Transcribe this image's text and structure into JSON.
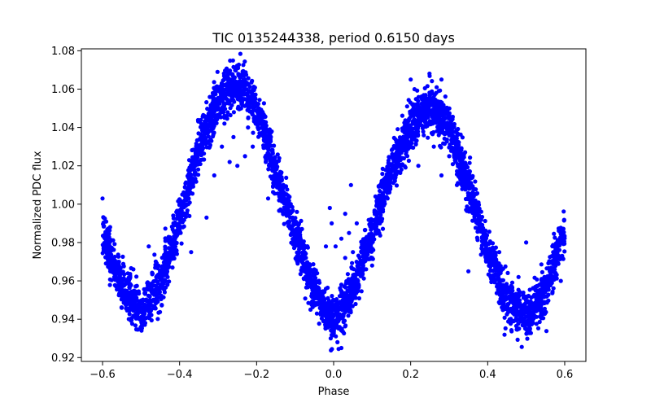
{
  "chart_data": {
    "type": "scatter",
    "title": "TIC 0135244338, period 0.6150 days",
    "xlabel": "Phase",
    "ylabel": "Normalized PDC flux",
    "xlim": [
      -0.655,
      0.655
    ],
    "ylim": [
      0.918,
      1.081
    ],
    "grid": false,
    "legend": "none",
    "marker_color": "#0000ff",
    "x_ticks": [
      -0.6,
      -0.4,
      -0.2,
      0.0,
      0.2,
      0.4,
      0.6
    ],
    "x_tick_labels": [
      "−0.6",
      "−0.4",
      "−0.2",
      "0.0",
      "0.2",
      "0.4",
      "0.6"
    ],
    "y_ticks": [
      0.92,
      0.94,
      0.96,
      0.98,
      1.0,
      1.02,
      1.04,
      1.06,
      1.08
    ],
    "y_tick_labels": [
      "0.92",
      "0.94",
      "0.96",
      "0.98",
      "1.00",
      "1.02",
      "1.04",
      "1.06",
      "1.08"
    ],
    "x_range": [
      -0.6,
      0.6
    ],
    "trend": {
      "x": [
        -0.6,
        -0.55,
        -0.5,
        -0.45,
        -0.4,
        -0.35,
        -0.3,
        -0.25,
        -0.2,
        -0.15,
        -0.1,
        -0.05,
        0.0,
        0.05,
        0.1,
        0.15,
        0.2,
        0.25,
        0.3,
        0.35,
        0.4,
        0.45,
        0.5,
        0.55,
        0.6
      ],
      "y": [
        0.985,
        0.957,
        0.944,
        0.958,
        0.99,
        1.03,
        1.055,
        1.063,
        1.05,
        1.017,
        0.983,
        0.955,
        0.94,
        0.955,
        0.985,
        1.018,
        1.04,
        1.052,
        1.04,
        1.01,
        0.975,
        0.95,
        0.942,
        0.955,
        0.985
      ]
    },
    "scatter_sigma": 0.006,
    "outliers": [
      {
        "x": -0.6,
        "y": 1.003
      },
      {
        "x": -0.48,
        "y": 0.978
      },
      {
        "x": -0.52,
        "y": 0.966
      },
      {
        "x": -0.37,
        "y": 0.975
      },
      {
        "x": -0.33,
        "y": 0.993
      },
      {
        "x": -0.31,
        "y": 1.015
      },
      {
        "x": -0.29,
        "y": 1.03
      },
      {
        "x": -0.27,
        "y": 1.022
      },
      {
        "x": -0.25,
        "y": 1.02
      },
      {
        "x": -0.23,
        "y": 1.025
      },
      {
        "x": -0.21,
        "y": 1.03
      },
      {
        "x": -0.26,
        "y": 1.035
      },
      {
        "x": -0.15,
        "y": 1.012
      },
      {
        "x": -0.17,
        "y": 1.003
      },
      {
        "x": -0.01,
        "y": 0.998
      },
      {
        "x": -0.005,
        "y": 0.99
      },
      {
        "x": -0.02,
        "y": 0.978
      },
      {
        "x": 0.005,
        "y": 0.978
      },
      {
        "x": 0.02,
        "y": 0.982
      },
      {
        "x": 0.03,
        "y": 0.972
      },
      {
        "x": 0.04,
        "y": 0.985
      },
      {
        "x": 0.05,
        "y": 0.975
      },
      {
        "x": 0.045,
        "y": 1.01
      },
      {
        "x": 0.03,
        "y": 0.995
      },
      {
        "x": 0.06,
        "y": 0.99
      },
      {
        "x": 0.01,
        "y": 0.928
      },
      {
        "x": 0.02,
        "y": 0.925
      },
      {
        "x": -0.06,
        "y": 0.945
      },
      {
        "x": 0.1,
        "y": 0.968
      },
      {
        "x": 0.2,
        "y": 1.065
      },
      {
        "x": 0.28,
        "y": 1.065
      },
      {
        "x": 0.26,
        "y": 1.03
      },
      {
        "x": 0.22,
        "y": 1.02
      },
      {
        "x": 0.3,
        "y": 1.025
      },
      {
        "x": 0.28,
        "y": 1.015
      },
      {
        "x": 0.32,
        "y": 1.01
      },
      {
        "x": 0.35,
        "y": 0.965
      },
      {
        "x": 0.43,
        "y": 0.975
      },
      {
        "x": 0.48,
        "y": 0.962
      },
      {
        "x": 0.5,
        "y": 0.98
      },
      {
        "x": 0.59,
        "y": 0.96
      },
      {
        "x": 0.57,
        "y": 0.975
      },
      {
        "x": -0.58,
        "y": 0.965
      },
      {
        "x": 0.14,
        "y": 1.003
      }
    ]
  }
}
